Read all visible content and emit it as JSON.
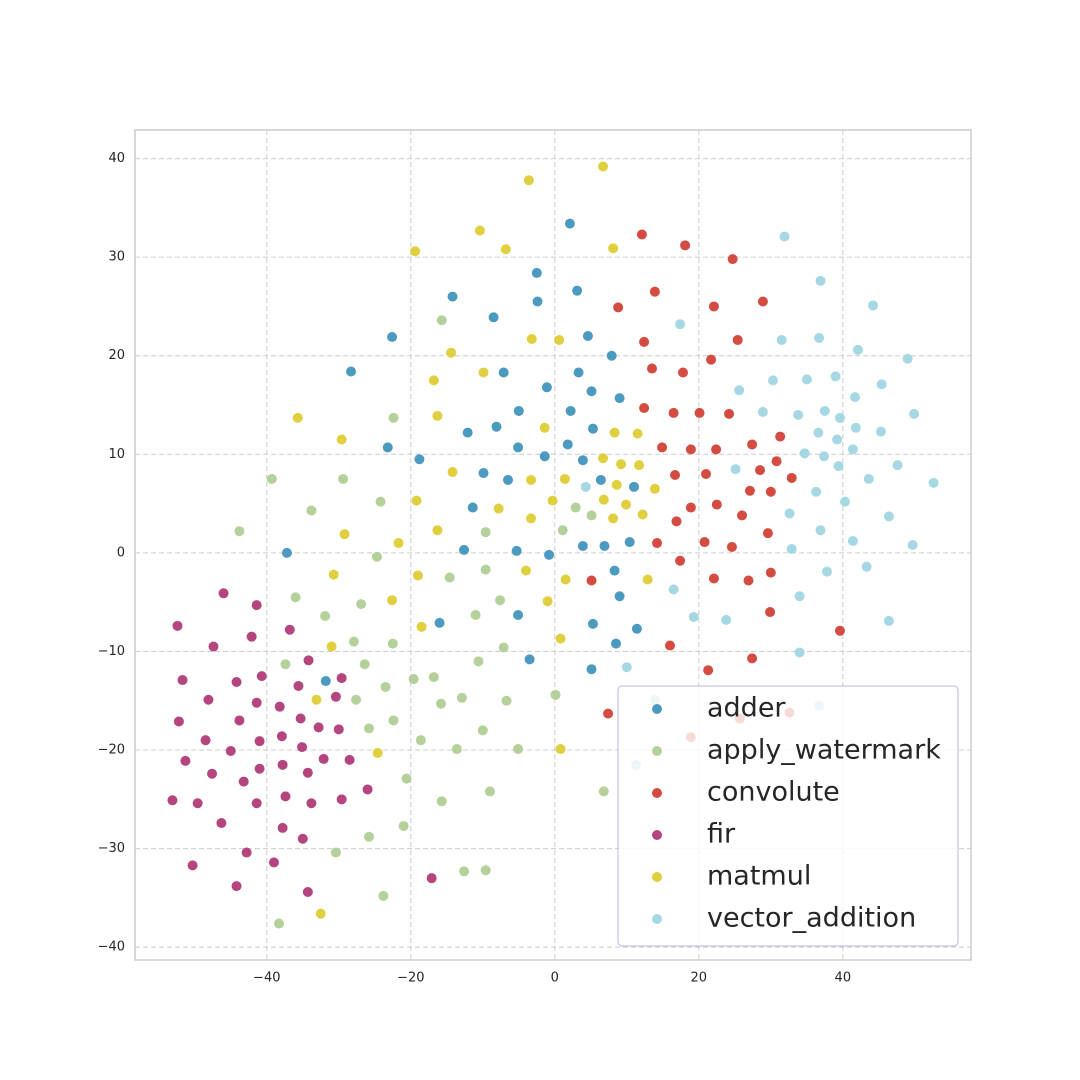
{
  "chart_data": {
    "type": "scatter",
    "xlim": [
      -58.3,
      57.8
    ],
    "ylim": [
      -41.3,
      42.9
    ],
    "xticks": [
      {
        "value": -40,
        "label": "−40"
      },
      {
        "value": -20,
        "label": "−20"
      },
      0,
      20,
      40
    ],
    "yticks": [
      {
        "value": -40,
        "label": "−40"
      },
      {
        "value": -30,
        "label": "−30"
      },
      {
        "value": -20,
        "label": "−20"
      },
      {
        "value": -10,
        "label": "−10"
      },
      0,
      10,
      20,
      30,
      40
    ],
    "grid": true,
    "legend": "lower right",
    "series": [
      {
        "name": "adder",
        "color": "#4c9ac0",
        "x": [
          2.1,
          -2.5,
          3.1,
          -14.2,
          -2.4,
          -8.5,
          -22.6,
          4.6,
          -28.3,
          -7.1,
          3.3,
          7.9,
          -1.1,
          5.1,
          9.0,
          -5.0,
          2.2,
          -8.1,
          -12.1,
          5.3,
          1.8,
          -23.2,
          -5.1,
          -18.8,
          -1.4,
          3.9,
          -9.9,
          -6.5,
          6.4,
          -11.4,
          11.0,
          3.9,
          6.9,
          10.4,
          -12.6,
          -5.3,
          -0.8,
          -37.2,
          8.3,
          9.0,
          -5.1,
          -16.0,
          5.3,
          11.4,
          8.5,
          -3.5,
          5.1,
          -31.8
        ],
        "y": [
          33.4,
          28.4,
          26.6,
          26.0,
          25.5,
          23.9,
          21.9,
          22.0,
          18.4,
          18.3,
          18.3,
          20.0,
          16.8,
          16.4,
          15.7,
          14.4,
          14.4,
          12.8,
          12.2,
          12.6,
          11.0,
          10.7,
          10.7,
          9.5,
          9.8,
          9.4,
          8.1,
          7.4,
          7.4,
          4.6,
          6.7,
          0.7,
          0.7,
          1.1,
          0.3,
          0.2,
          -0.2,
          0.0,
          -1.8,
          -4.4,
          -6.3,
          -7.1,
          -7.2,
          -7.7,
          -9.2,
          -10.8,
          -11.8,
          -13.0
        ]
      },
      {
        "name": "apply_watermark",
        "color": "#b5d19b",
        "x": [
          -15.7,
          -22.4,
          -39.3,
          -29.4,
          -24.2,
          -33.8,
          -43.8,
          -9.6,
          1.1,
          2.9,
          5.1,
          -24.7,
          -14.6,
          -9.6,
          -36.0,
          -26.9,
          -7.6,
          -31.9,
          -11.0,
          -27.9,
          -22.5,
          -7.1,
          -37.4,
          -26.4,
          -10.6,
          -19.6,
          -16.8,
          -23.5,
          -12.9,
          -27.6,
          -6.7,
          -15.8,
          0.1,
          -25.8,
          -22.4,
          -10.0,
          -18.6,
          -13.6,
          -5.1,
          -20.6,
          -9.0,
          6.8,
          -15.7,
          -25.8,
          -21.0,
          -30.4,
          -12.6,
          -9.6,
          -23.8,
          -38.3
        ],
        "y": [
          23.6,
          13.7,
          7.5,
          7.5,
          5.2,
          4.3,
          2.2,
          2.1,
          2.3,
          4.6,
          3.8,
          -0.4,
          -2.5,
          -1.7,
          -4.5,
          -5.2,
          -4.8,
          -6.4,
          -6.3,
          -9.0,
          -9.2,
          -9.6,
          -11.3,
          -11.3,
          -11.0,
          -12.8,
          -12.6,
          -13.6,
          -14.7,
          -14.9,
          -15.0,
          -15.3,
          -14.4,
          -17.8,
          -17.0,
          -18.0,
          -19.0,
          -19.9,
          -19.9,
          -22.9,
          -24.2,
          -24.2,
          -25.2,
          -28.8,
          -27.7,
          -30.4,
          -32.3,
          -32.2,
          -34.8,
          -37.6
        ]
      },
      {
        "name": "convolute",
        "color": "#d44c41",
        "x": [
          12.1,
          18.1,
          24.7,
          13.9,
          8.8,
          22.1,
          28.9,
          12.4,
          25.4,
          21.7,
          13.5,
          17.8,
          12.4,
          16.5,
          20.1,
          24.2,
          31.3,
          27.4,
          14.9,
          18.9,
          22.4,
          30.8,
          16.7,
          21.0,
          28.5,
          32.9,
          27.1,
          30.0,
          18.9,
          22.5,
          26.0,
          16.9,
          29.6,
          14.2,
          20.8,
          24.6,
          17.4,
          5.1,
          22.1,
          26.9,
          30.0,
          29.9,
          39.6,
          16.0,
          27.4,
          21.3,
          7.4,
          25.7,
          32.6,
          18.9
        ],
        "y": [
          32.3,
          31.2,
          29.8,
          26.5,
          24.9,
          25.0,
          25.5,
          21.4,
          21.6,
          19.6,
          18.7,
          18.3,
          14.7,
          14.2,
          14.2,
          14.1,
          11.8,
          11.0,
          10.7,
          10.5,
          10.5,
          9.3,
          7.9,
          8.0,
          8.4,
          7.6,
          6.3,
          6.2,
          4.6,
          4.9,
          3.8,
          3.2,
          2.0,
          1.0,
          1.1,
          0.6,
          -0.8,
          -2.8,
          -2.6,
          -2.8,
          -2.0,
          -6.0,
          -7.9,
          -9.4,
          -10.7,
          -11.9,
          -16.3,
          -16.8,
          -16.2,
          -18.7
        ]
      },
      {
        "name": "fir",
        "color": "#b5457f",
        "x": [
          -46.0,
          -41.4,
          -52.4,
          -36.8,
          -42.1,
          -47.4,
          -34.2,
          -40.7,
          -29.6,
          -51.7,
          -44.2,
          -35.6,
          -30.4,
          -48.1,
          -41.4,
          -38.2,
          -35.3,
          -52.2,
          -43.8,
          -32.8,
          -30.0,
          -37.9,
          -48.5,
          -41.0,
          -35.1,
          -45.0,
          -28.5,
          -51.3,
          -32.1,
          -37.8,
          -41.0,
          -47.6,
          -34.3,
          -43.2,
          -26.0,
          -37.4,
          -53.1,
          -29.6,
          -49.6,
          -41.4,
          -33.8,
          -46.3,
          -37.8,
          -35.0,
          -42.8,
          -39.0,
          -50.3,
          -17.1,
          -44.2,
          -34.3
        ],
        "y": [
          -4.1,
          -5.3,
          -7.4,
          -7.8,
          -8.5,
          -9.5,
          -10.9,
          -12.5,
          -12.7,
          -12.9,
          -13.1,
          -13.5,
          -14.6,
          -14.9,
          -15.2,
          -15.6,
          -16.8,
          -17.1,
          -17.0,
          -17.7,
          -17.9,
          -18.6,
          -19.0,
          -19.1,
          -19.7,
          -20.1,
          -21.0,
          -21.1,
          -20.9,
          -21.5,
          -21.9,
          -22.4,
          -22.3,
          -23.2,
          -24.0,
          -24.7,
          -25.1,
          -25.0,
          -25.4,
          -25.4,
          -25.4,
          -27.4,
          -27.9,
          -29.0,
          -30.4,
          -31.4,
          -31.7,
          -33.0,
          -33.8,
          -34.4
        ]
      },
      {
        "name": "matmul",
        "color": "#e0cf3e",
        "x": [
          6.7,
          -3.6,
          -10.4,
          -19.4,
          -6.8,
          8.1,
          -3.2,
          0.6,
          -14.4,
          -16.8,
          -9.9,
          -35.7,
          -16.3,
          -1.4,
          8.3,
          11.5,
          -29.6,
          6.7,
          9.2,
          11.7,
          -14.2,
          1.4,
          -3.3,
          8.6,
          13.9,
          -0.3,
          -19.2,
          6.8,
          9.9,
          -7.8,
          12.2,
          -3.3,
          8.1,
          -16.3,
          -29.2,
          -21.7,
          -30.7,
          -19.0,
          -4.0,
          1.5,
          12.9,
          -22.6,
          -1.0,
          -18.5,
          0.8,
          -31.0,
          -33.1,
          -24.6,
          0.8,
          -32.5
        ],
        "y": [
          39.2,
          37.8,
          32.7,
          30.6,
          30.8,
          30.9,
          21.7,
          21.6,
          20.3,
          17.5,
          18.3,
          13.7,
          13.9,
          12.7,
          12.2,
          12.1,
          11.5,
          9.6,
          9.0,
          8.9,
          8.2,
          7.5,
          7.4,
          6.9,
          6.5,
          5.3,
          5.3,
          5.4,
          4.9,
          4.5,
          3.9,
          3.5,
          3.5,
          2.3,
          1.9,
          1.0,
          -2.2,
          -2.3,
          -1.8,
          -2.7,
          -2.7,
          -4.8,
          -4.9,
          -7.5,
          -8.7,
          -9.5,
          -14.9,
          -20.3,
          -19.9,
          -36.6
        ]
      },
      {
        "name": "vector_addition",
        "color": "#a6d8e4",
        "x": [
          31.9,
          36.9,
          44.2,
          17.4,
          31.5,
          36.7,
          42.1,
          49.0,
          25.6,
          30.3,
          35.0,
          39.0,
          45.4,
          41.7,
          28.9,
          33.8,
          37.5,
          39.6,
          49.9,
          36.6,
          41.8,
          39.2,
          45.3,
          34.7,
          37.4,
          41.4,
          39.4,
          47.6,
          25.1,
          43.6,
          52.6,
          4.3,
          36.3,
          40.3,
          32.6,
          46.4,
          36.9,
          41.4,
          49.7,
          32.9,
          37.8,
          43.3,
          16.5,
          34.0,
          19.3,
          23.8,
          46.4,
          34.0,
          10.0,
          13.9,
          36.7,
          11.3
        ],
        "y": [
          32.1,
          27.6,
          25.1,
          23.2,
          21.6,
          21.8,
          20.6,
          19.7,
          16.5,
          17.5,
          17.6,
          17.9,
          17.1,
          15.8,
          14.3,
          14.0,
          14.4,
          13.7,
          14.1,
          12.2,
          12.7,
          11.5,
          12.3,
          10.1,
          9.8,
          10.5,
          8.8,
          8.9,
          8.5,
          7.5,
          7.1,
          6.7,
          6.2,
          5.2,
          4.0,
          3.7,
          2.3,
          1.2,
          0.8,
          0.4,
          -1.9,
          -1.4,
          -3.7,
          -4.4,
          -6.5,
          -6.8,
          -6.9,
          -10.1,
          -11.6,
          -14.9,
          -15.5,
          -21.5
        ]
      }
    ]
  }
}
